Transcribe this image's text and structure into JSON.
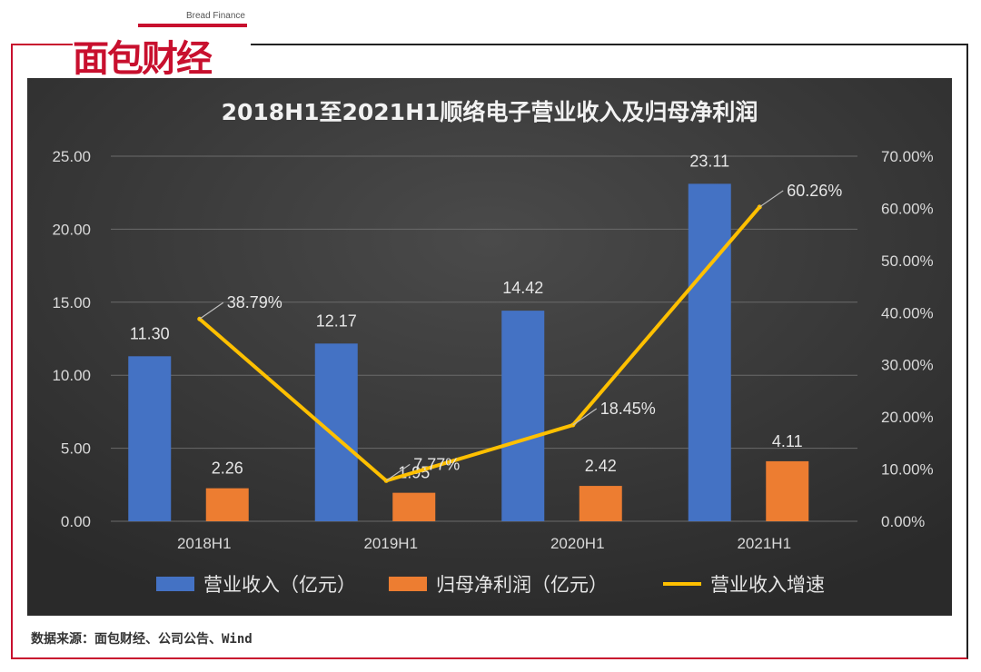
{
  "brand": {
    "name_cn": "面包财经",
    "name_en": "Bread Finance"
  },
  "source_text": "数据来源：面包财经、公司公告、Wind",
  "colors": {
    "bg_top": "#4a4a4a",
    "bg_bottom": "#2a2a2a",
    "revenue": "#4472c4",
    "profit": "#ed7d31",
    "growth": "#ffc000",
    "brand_red": "#c8102e"
  },
  "chart_data": {
    "type": "bar",
    "title": "2018H1至2021H1顺络电子营业收入及归母净利润",
    "categories": [
      "2018H1",
      "2019H1",
      "2020H1",
      "2021H1"
    ],
    "series": [
      {
        "name": "营业收入（亿元）",
        "type": "bar",
        "axis": "left",
        "values": [
          11.3,
          12.17,
          14.42,
          23.11
        ],
        "labels": [
          "11.30",
          "12.17",
          "14.42",
          "23.11"
        ]
      },
      {
        "name": "归母净利润（亿元）",
        "type": "bar",
        "axis": "left",
        "values": [
          2.26,
          1.95,
          2.42,
          4.11
        ],
        "labels": [
          "2.26",
          "1.95",
          "2.42",
          "4.11"
        ]
      },
      {
        "name": "营业收入增速",
        "type": "line",
        "axis": "right",
        "values": [
          38.79,
          7.77,
          18.45,
          60.26
        ],
        "labels": [
          "38.79%",
          "7.77%",
          "18.45%",
          "60.26%"
        ]
      }
    ],
    "y_left": {
      "min": 0,
      "max": 25,
      "ticks": [
        "0.00",
        "5.00",
        "10.00",
        "15.00",
        "20.00",
        "25.00"
      ]
    },
    "y_right": {
      "min": 0,
      "max": 70,
      "ticks": [
        "0.00%",
        "10.00%",
        "20.00%",
        "30.00%",
        "40.00%",
        "50.00%",
        "60.00%",
        "70.00%"
      ]
    },
    "grid": true,
    "legend_position": "bottom"
  }
}
